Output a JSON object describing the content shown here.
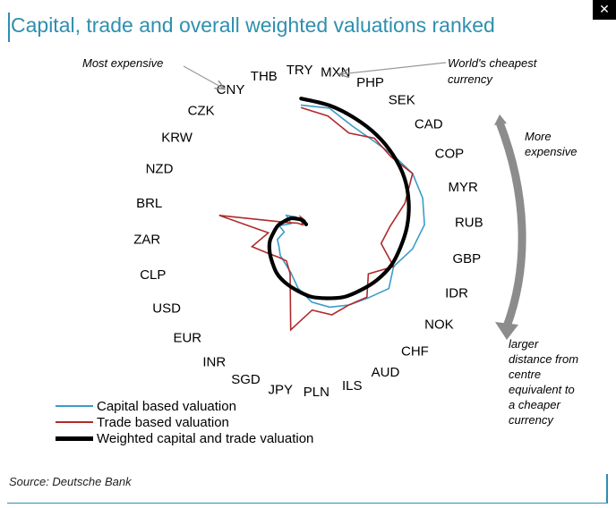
{
  "header": {
    "title": "Capital, trade and overall weighted valuations ranked",
    "corner_icon": "close-x"
  },
  "colors": {
    "title": "#2e8fb0",
    "capital": "#3a9cc8",
    "trade": "#b02a2a",
    "weighted": "#000000",
    "arrow": "#8c8c8c"
  },
  "annotations": {
    "most_expensive": "Most expensive",
    "cheapest_line1": "World's cheapest",
    "cheapest_line2": "currency",
    "more_expensive_line1": "More",
    "more_expensive_line2": "expensive",
    "distance_lines": [
      "larger",
      "distance  from",
      "centre",
      "equivalent to",
      "a cheaper",
      "currency"
    ]
  },
  "legend": [
    {
      "key": "capital",
      "label": "Capital based valuation"
    },
    {
      "key": "trade",
      "label": "Trade based valuation"
    },
    {
      "key": "weighted",
      "label": "Weighted capital and trade valuation"
    }
  ],
  "source": "Source: Deutsche Bank",
  "chart_data": {
    "type": "radar",
    "title": "Capital, trade and overall weighted valuations ranked",
    "categories": [
      "TRY",
      "MXN",
      "PHP",
      "SEK",
      "CAD",
      "COP",
      "MYR",
      "RUB",
      "GBP",
      "IDR",
      "NOK",
      "CHF",
      "AUD",
      "ILS",
      "PLN",
      "JPY",
      "SGD",
      "INR",
      "EUR",
      "USD",
      "CLP",
      "ZAR",
      "BRL",
      "NZD",
      "KRW",
      "CZK",
      "CNY",
      "THB"
    ],
    "series": [
      {
        "name": "Capital based valuation",
        "values": [
          95,
          94,
          86,
          84,
          86,
          90,
          90,
          88,
          80,
          70,
          75,
          68,
          64,
          60,
          54,
          44,
          34,
          30,
          28,
          25,
          24,
          18,
          22,
          14,
          20,
          14,
          7,
          5
        ]
      },
      {
        "name": "Trade based valuation",
        "values": [
          93,
          88,
          80,
          86,
          84,
          90,
          76,
          62,
          56,
          70,
          56,
          67,
          64,
          66,
          60,
          76,
          35,
          28,
          30,
          35,
          44,
          30,
          68,
          16,
          10,
          6,
          12,
          8
        ]
      },
      {
        "name": "Weighted capital and trade valuation",
        "values": [
          100,
          96,
          92,
          89,
          86,
          83,
          79,
          75,
          71,
          68,
          64,
          60,
          57,
          53,
          50,
          46,
          43,
          40,
          36,
          33,
          30,
          26,
          23,
          19,
          16,
          12,
          9,
          5
        ]
      }
    ]
  }
}
